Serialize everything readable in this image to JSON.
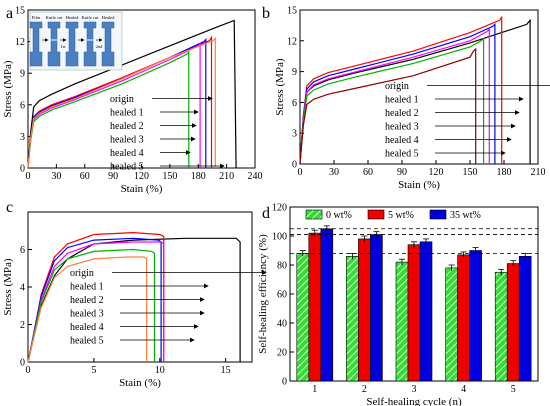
{
  "chart_data": [
    {
      "panel": "a",
      "type": "line",
      "xlabel": "Stain (%)",
      "ylabel": "Stress (MPa)",
      "xlim": [
        0,
        240
      ],
      "ylim": [
        0,
        15
      ],
      "xticks": [
        0,
        30,
        60,
        90,
        120,
        150,
        180,
        210,
        240
      ],
      "yticks": [
        0,
        3,
        6,
        9,
        12,
        15
      ],
      "legend_labels": [
        "origin",
        "healed 1",
        "healed 2",
        "healed 3",
        "healed 4",
        "healed 5"
      ],
      "inset": {
        "labels": [
          "Film",
          "Knife cut",
          "Healed",
          "Knife cut",
          "Healed"
        ],
        "arrows": [
          "1st",
          "2nd"
        ]
      },
      "series": [
        {
          "name": "origin",
          "color": "#000000",
          "x": [
            0,
            3,
            6,
            12,
            25,
            50,
            100,
            150,
            200,
            218,
            220
          ],
          "y": [
            0,
            3.5,
            5.8,
            6.4,
            7.0,
            8.0,
            9.8,
            11.6,
            13.4,
            14.0,
            0
          ]
        },
        {
          "name": "healed 1",
          "color": "#ff0000",
          "x": [
            0,
            3,
            6,
            12,
            25,
            50,
            100,
            150,
            192,
            194,
            194
          ],
          "y": [
            0,
            3.0,
            4.9,
            5.4,
            6.0,
            6.8,
            8.6,
            10.5,
            12.1,
            12.4,
            0
          ]
        },
        {
          "name": "healed 2",
          "color": "#0000ff",
          "x": [
            0,
            3,
            6,
            12,
            25,
            50,
            100,
            150,
            186,
            188,
            188
          ],
          "y": [
            0,
            2.9,
            4.8,
            5.3,
            5.9,
            6.7,
            8.5,
            10.5,
            12.0,
            12.2,
            0
          ]
        },
        {
          "name": "healed 3",
          "color": "#ff00ff",
          "x": [
            0,
            3,
            6,
            12,
            25,
            50,
            100,
            150,
            180,
            182,
            182
          ],
          "y": [
            0,
            2.8,
            4.6,
            5.1,
            5.7,
            6.5,
            8.3,
            10.3,
            11.6,
            11.8,
            0
          ]
        },
        {
          "name": "healed 4",
          "color": "#00b000",
          "x": [
            0,
            3,
            6,
            12,
            25,
            50,
            100,
            150,
            168,
            170,
            170
          ],
          "y": [
            0,
            2.7,
            4.4,
            4.9,
            5.5,
            6.3,
            8.0,
            10.0,
            10.8,
            11.0,
            0
          ]
        },
        {
          "name": "healed 5",
          "color": "#ff8040",
          "x": [
            0,
            3,
            6,
            12,
            25,
            50,
            100,
            150,
            196,
            198,
            198
          ],
          "y": [
            0,
            2.9,
            4.7,
            5.2,
            5.8,
            6.6,
            8.5,
            10.5,
            12.1,
            12.3,
            0
          ]
        }
      ]
    },
    {
      "panel": "b",
      "type": "line",
      "xlabel": "Stain (%)",
      "ylabel": "Stress (MPa)",
      "xlim": [
        0,
        210
      ],
      "ylim": [
        0,
        15
      ],
      "xticks": [
        0,
        30,
        60,
        90,
        120,
        150,
        180,
        210
      ],
      "yticks": [
        0,
        3,
        6,
        9,
        12,
        15
      ],
      "legend_labels": [
        "origin",
        "healed 1",
        "healed 2",
        "healed 3",
        "healed 4",
        "healed 5"
      ],
      "series": [
        {
          "name": "origin",
          "color": "#000000",
          "x": [
            0,
            3,
            6,
            12,
            25,
            50,
            100,
            150,
            200,
            203,
            203
          ],
          "y": [
            0,
            4.5,
            7.0,
            7.6,
            8.2,
            8.9,
            10.2,
            11.8,
            13.6,
            14.0,
            0
          ]
        },
        {
          "name": "healed 1",
          "color": "#ff0000",
          "x": [
            0,
            3,
            6,
            12,
            25,
            50,
            100,
            150,
            176,
            178,
            178
          ],
          "y": [
            0,
            4.8,
            7.6,
            8.3,
            8.9,
            9.6,
            11.0,
            12.8,
            14.0,
            14.3,
            0
          ]
        },
        {
          "name": "healed 2",
          "color": "#0000ff",
          "x": [
            0,
            3,
            6,
            12,
            25,
            50,
            100,
            150,
            170,
            172,
            172
          ],
          "y": [
            0,
            4.6,
            7.3,
            8.0,
            8.6,
            9.3,
            10.7,
            12.4,
            13.4,
            13.6,
            0
          ]
        },
        {
          "name": "healed 3",
          "color": "#ff00ff",
          "x": [
            0,
            3,
            6,
            12,
            25,
            50,
            100,
            150,
            165,
            167,
            167
          ],
          "y": [
            0,
            4.4,
            7.0,
            7.7,
            8.3,
            9.0,
            10.4,
            12.0,
            12.9,
            13.1,
            0
          ]
        },
        {
          "name": "healed 4",
          "color": "#00b000",
          "x": [
            0,
            3,
            6,
            12,
            25,
            50,
            100,
            150,
            160,
            162,
            162
          ],
          "y": [
            0,
            4.2,
            6.6,
            7.2,
            7.8,
            8.5,
            9.8,
            11.4,
            12.0,
            12.2,
            0
          ]
        },
        {
          "name": "healed 5",
          "color": "#8b0000",
          "x": [
            0,
            3,
            6,
            12,
            25,
            50,
            100,
            150,
            153,
            155,
            155
          ],
          "y": [
            0,
            3.8,
            5.8,
            6.3,
            6.8,
            7.4,
            8.6,
            10.4,
            11.0,
            11.2,
            0
          ]
        }
      ]
    },
    {
      "panel": "c",
      "type": "line",
      "xlabel": "Stain (%)",
      "ylabel": "Stress (MPa)",
      "xlim": [
        0,
        17
      ],
      "ylim": [
        0,
        8
      ],
      "xticks": [
        0,
        5,
        10,
        15
      ],
      "yticks": [
        0,
        2,
        4,
        6
      ],
      "legend_labels": [
        "origin",
        "healed 1",
        "healed 2",
        "healed 3",
        "healed 4",
        "healed 5"
      ],
      "series": [
        {
          "name": "origin",
          "color": "#000000",
          "x": [
            0,
            0.4,
            1,
            2,
            3,
            5,
            8,
            12,
            15.8,
            16.1,
            16.1
          ],
          "y": [
            0,
            1.2,
            3.0,
            4.6,
            5.5,
            6.3,
            6.5,
            6.6,
            6.6,
            6.4,
            0
          ]
        },
        {
          "name": "healed 1",
          "color": "#ff0000",
          "x": [
            0,
            0.4,
            1,
            2,
            3,
            5,
            8,
            10.0,
            10.3,
            10.3
          ],
          "y": [
            0,
            1.4,
            3.6,
            5.6,
            6.3,
            6.8,
            6.9,
            6.8,
            6.7,
            0
          ]
        },
        {
          "name": "healed 2",
          "color": "#0000ff",
          "x": [
            0,
            0.4,
            1,
            2,
            3,
            5,
            8,
            9.9,
            10.1,
            10.1
          ],
          "y": [
            0,
            1.4,
            3.5,
            5.4,
            6.1,
            6.5,
            6.6,
            6.5,
            6.4,
            0
          ]
        },
        {
          "name": "healed 3",
          "color": "#ff00ff",
          "x": [
            0,
            0.4,
            1,
            2,
            3,
            5,
            8,
            10.1,
            10.3,
            10.3
          ],
          "y": [
            0,
            1.3,
            3.3,
            5.1,
            5.8,
            6.3,
            6.4,
            6.4,
            6.3,
            0
          ]
        },
        {
          "name": "healed 4",
          "color": "#00b000",
          "x": [
            0,
            0.4,
            1,
            2,
            3,
            5,
            8,
            9.4,
            9.6,
            9.6
          ],
          "y": [
            0,
            1.3,
            3.2,
            4.9,
            5.5,
            5.9,
            6.0,
            5.9,
            5.8,
            0
          ]
        },
        {
          "name": "healed 5",
          "color": "#ff8040",
          "x": [
            0,
            0.4,
            1,
            2,
            3,
            5,
            7.5,
            8.8,
            9.0,
            9.0
          ],
          "y": [
            0,
            1.2,
            2.9,
            4.5,
            5.1,
            5.5,
            5.6,
            5.6,
            5.5,
            0
          ]
        }
      ]
    },
    {
      "panel": "d",
      "type": "bar",
      "xlabel": "Self-healing cycle (n)",
      "ylabel": "Self-healing efficiency (%)",
      "categories": [
        "1",
        "2",
        "3",
        "4",
        "5"
      ],
      "ylim": [
        0,
        120
      ],
      "yticks": [
        0,
        20,
        40,
        60,
        80,
        100,
        120
      ],
      "reference_lines": [
        88,
        101,
        105
      ],
      "series": [
        {
          "name": "0 wt%",
          "color": "#33dd33",
          "pattern": "hatch",
          "values": [
            88,
            86,
            82,
            78,
            75
          ],
          "errors": [
            2,
            2,
            2,
            2,
            2
          ]
        },
        {
          "name": "5 wt%",
          "color": "#ee0000",
          "values": [
            102,
            98,
            94,
            87,
            81
          ],
          "errors": [
            2,
            2,
            2,
            2,
            2
          ]
        },
        {
          "name": "35 wt%",
          "color": "#0000dd",
          "values": [
            105,
            101,
            96,
            90,
            86
          ],
          "errors": [
            2,
            2,
            2,
            2,
            2
          ]
        }
      ]
    }
  ]
}
